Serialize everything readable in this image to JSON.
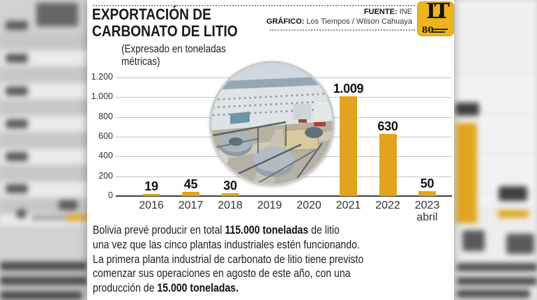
{
  "infographic": {
    "title_lines": [
      "EXPORTACIÓN DE",
      "CARBONATO DE LITIO"
    ],
    "subtitle_lines": [
      "(Expresado en toneladas",
      "métricas)"
    ],
    "source": {
      "label": "FUENTE:",
      "value": "INE"
    },
    "credit": {
      "label": "GRÁFICO:",
      "value": "Los Tiempos / Wilson Cahuaya"
    },
    "logo": {
      "initials": "LT",
      "anniversary": "80"
    }
  },
  "chart_data": {
    "type": "bar",
    "title": "EXPORTACIÓN DE CARBONATO DE LITIO",
    "unit_note": "Expresado en toneladas métricas",
    "categories": [
      "2016",
      "2017",
      "2018",
      "2019",
      "2020",
      "2021",
      "2022",
      "2023"
    ],
    "category_notes": [
      "",
      "",
      "",
      "",
      "",
      "",
      "",
      "abril"
    ],
    "values": [
      19,
      45,
      30,
      null,
      null,
      1009,
      630,
      50
    ],
    "value_labels": [
      "19",
      "45",
      "30",
      "",
      "",
      "1.009",
      "630",
      "50"
    ],
    "y_ticks": [
      "1.200",
      "1.000",
      "800",
      "600",
      "400",
      "200",
      "0"
    ],
    "ylim": [
      0,
      1200
    ],
    "grid": true,
    "legend": "none",
    "bar_color": "#E2A41D"
  },
  "footer": {
    "lines": [
      [
        {
          "text": "Bolivia prevé producir en total ",
          "bold": false
        },
        {
          "text": "115.000 toneladas",
          "bold": true
        },
        {
          "text": " de litio",
          "bold": false
        }
      ],
      [
        {
          "text": "una vez que las cinco plantas industriales estén funcionando.",
          "bold": false
        }
      ],
      [
        {
          "text": "La primera planta industrial de carbonato de litio tiene previsto",
          "bold": false
        }
      ],
      [
        {
          "text": "comenzar sus operaciones en agosto de este año, con una",
          "bold": false
        }
      ],
      [
        {
          "text": "producción de ",
          "bold": false
        },
        {
          "text": "15.000 toneladas.",
          "bold": true
        }
      ]
    ]
  },
  "colors": {
    "bar": "#E2A41D",
    "logo_gold": "#EDB41E",
    "axis": "#3B3B3B",
    "grid": "#C6C6C6"
  }
}
